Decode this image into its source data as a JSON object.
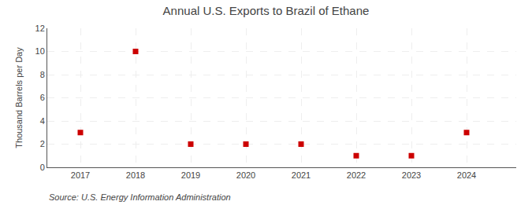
{
  "chart_data": {
    "type": "scatter",
    "title": "Annual U.S. Exports to Brazil of Ethane",
    "ylabel": "Thousand Barrels per Day",
    "x": [
      2017,
      2018,
      2019,
      2020,
      2021,
      2022,
      2023,
      2024
    ],
    "values": [
      3,
      10,
      2,
      2,
      2,
      1,
      1,
      3
    ],
    "xlim": [
      2016.4,
      2024.9
    ],
    "xticks": [
      2017,
      2018,
      2019,
      2020,
      2021,
      2022,
      2023,
      2024
    ],
    "ylim": [
      0,
      12
    ],
    "yticks": [
      0,
      2,
      4,
      6,
      8,
      10,
      12
    ],
    "color": "#cc0000",
    "marker": "square",
    "line_style": "none",
    "grid": true,
    "annotations": [
      "Source: U.S. Energy Information Administration"
    ]
  }
}
